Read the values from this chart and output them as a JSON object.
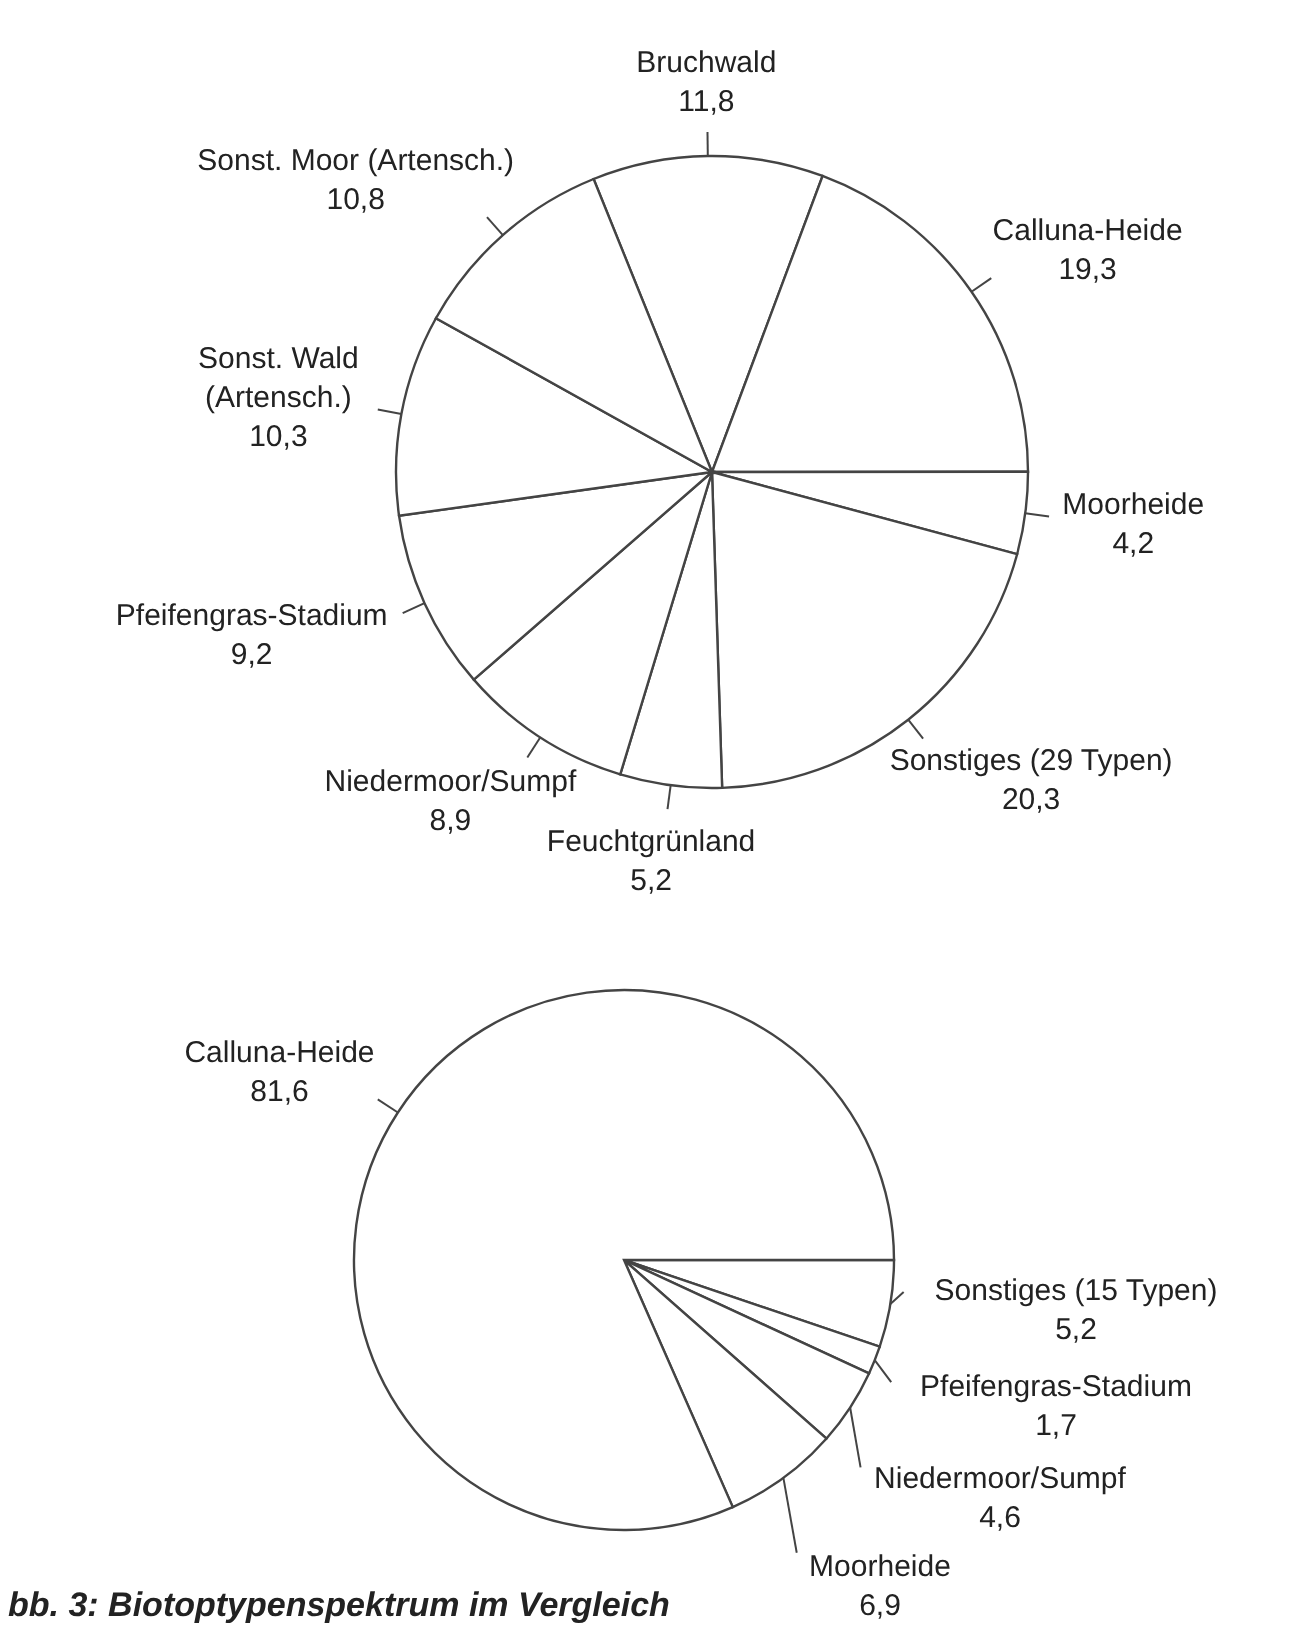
{
  "chart_data": [
    {
      "type": "pie",
      "categories": [
        "Bruchwald",
        "Calluna-Heide",
        "Moorheide",
        "Sonstiges (29 Typen)",
        "Feuchtgrünland",
        "Niedermoor/Sumpf",
        "Pfeifengras-Stadium",
        "Sonst. Wald (Artensch.)",
        "Sonst. Moor (Artensch.)"
      ],
      "values": [
        11.8,
        19.3,
        4.2,
        20.3,
        5.2,
        8.9,
        9.2,
        10.3,
        10.8
      ],
      "value_labels": [
        "11,8",
        "19,3",
        "4,2",
        "20,3",
        "5,2",
        "8,9",
        "9,2",
        "10,3",
        "10,8"
      ],
      "colors": [
        "#ffffff",
        "#ffffff",
        "#ffffff",
        "#ffffff",
        "#ffffff",
        "#ffffff",
        "#ffffff",
        "#ffffff",
        "#ffffff"
      ]
    },
    {
      "type": "pie",
      "categories": [
        "Sonstiges (15 Typen)",
        "Pfeifengras-Stadium",
        "Niedermoor/Sumpf",
        "Moorheide",
        "Calluna-Heide"
      ],
      "values": [
        5.2,
        1.7,
        4.6,
        6.9,
        81.6
      ],
      "value_labels": [
        "5,2",
        "1,7",
        "4,6",
        "6,9",
        "81,6"
      ],
      "colors": [
        "#ffffff",
        "#ffffff",
        "#ffffff",
        "#ffffff",
        "#ffffff"
      ],
      "annotations": [
        "bb. 3: Biotoptypenspektrum im Vergleich"
      ]
    }
  ]
}
